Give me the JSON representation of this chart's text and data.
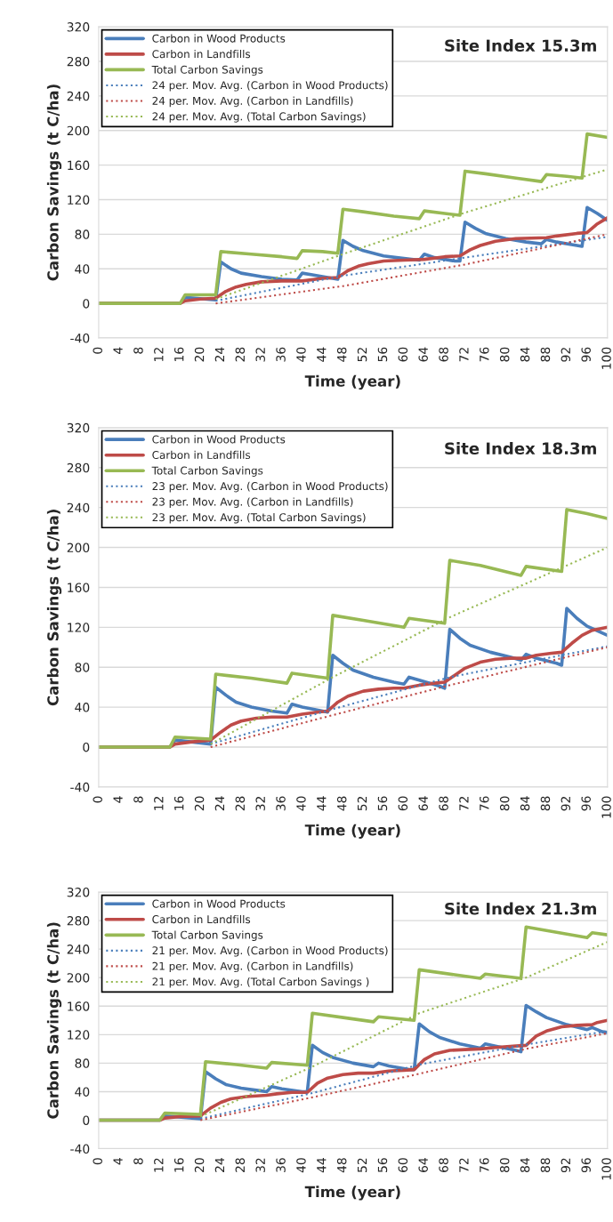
{
  "chart_data": [
    {
      "type": "line",
      "annotations": [
        "Site Index 15.3m"
      ],
      "xlabel": "Time (year)",
      "ylabel": "Carbon Savings (t C/ha)",
      "xlim": [
        0,
        100
      ],
      "xticks": [
        0,
        4,
        8,
        12,
        16,
        20,
        24,
        28,
        32,
        36,
        40,
        44,
        48,
        52,
        56,
        60,
        64,
        68,
        72,
        76,
        80,
        84,
        88,
        92,
        96,
        100
      ],
      "ylim": [
        -40,
        320
      ],
      "yticks": [
        -40,
        0,
        40,
        80,
        120,
        160,
        200,
        240,
        280,
        320
      ],
      "grid": "y",
      "legend": "top left",
      "series": [
        {
          "name": "Carbon in Wood Products",
          "color": "#4a7ebb",
          "line_style": "solid",
          "x": [
            0,
            16,
            17,
            23,
            24,
            26,
            28,
            32,
            36,
            39,
            40,
            42,
            46,
            47,
            48,
            50,
            52,
            56,
            60,
            63,
            64,
            66,
            70,
            71,
            72,
            74,
            76,
            80,
            84,
            87,
            88,
            90,
            94,
            95,
            96,
            98,
            100
          ],
          "values": [
            0,
            0,
            7,
            4,
            48,
            40,
            35,
            31,
            28,
            27,
            35,
            33,
            29,
            28,
            73,
            66,
            61,
            55,
            52,
            50,
            57,
            53,
            49,
            49,
            94,
            87,
            81,
            75,
            71,
            69,
            74,
            71,
            67,
            66,
            111,
            104,
            96
          ]
        },
        {
          "name": "Carbon in Landfills",
          "color": "#be4b48",
          "line_style": "solid",
          "x": [
            0,
            16,
            17,
            20,
            23,
            25,
            27,
            29,
            32,
            36,
            40,
            44,
            47,
            49,
            51,
            53,
            56,
            60,
            64,
            68,
            71,
            73,
            75,
            78,
            82,
            88,
            90,
            94,
            96,
            98,
            100
          ],
          "values": [
            0,
            0,
            3,
            5,
            6,
            14,
            19,
            22,
            25,
            26,
            26,
            29,
            30,
            38,
            43,
            46,
            49,
            50,
            51,
            54,
            55,
            62,
            67,
            72,
            75,
            76,
            78,
            81,
            82,
            92,
            99
          ]
        },
        {
          "name": "Total Carbon Savings",
          "color": "#98b954",
          "line_style": "solid",
          "x": [
            0,
            16,
            17,
            23,
            24,
            30,
            36,
            39,
            40,
            44,
            47,
            48,
            52,
            58,
            63,
            64,
            68,
            71,
            72,
            76,
            82,
            87,
            88,
            92,
            95,
            96,
            100
          ],
          "values": [
            0,
            0,
            10,
            10,
            60,
            57,
            54,
            52,
            61,
            60,
            58,
            109,
            106,
            101,
            98,
            107,
            104,
            102,
            153,
            150,
            145,
            141,
            149,
            147,
            145,
            196,
            192
          ]
        },
        {
          "name": "24 per. Mov. Avg. (Carbon in Wood Products)",
          "color": "#4a7ebb",
          "line_style": "dotted",
          "x": [
            23,
            48,
            72,
            100
          ],
          "values": [
            3,
            32,
            53,
            77
          ]
        },
        {
          "name": "24 per. Mov. Avg. (Carbon in Landfills)",
          "color": "#be4b48",
          "line_style": "dotted",
          "x": [
            23,
            48,
            72,
            100
          ],
          "values": [
            0,
            20,
            45,
            80
          ]
        },
        {
          "name": "24 per. Mov. Avg. (Total Carbon Savings)",
          "color": "#98b954",
          "line_style": "dotted",
          "x": [
            23,
            48,
            72,
            100
          ],
          "values": [
            5,
            57,
            105,
            155
          ]
        }
      ]
    },
    {
      "type": "line",
      "annotations": [
        "Site Index 18.3m"
      ],
      "xlabel": "Time (year)",
      "ylabel": "Carbon Savings (t C/ha)",
      "xlim": [
        0,
        100
      ],
      "xticks": [
        0,
        4,
        8,
        12,
        16,
        20,
        24,
        28,
        32,
        36,
        40,
        44,
        48,
        52,
        56,
        60,
        64,
        68,
        72,
        76,
        80,
        84,
        88,
        92,
        96,
        100
      ],
      "ylim": [
        -40,
        320
      ],
      "yticks": [
        -40,
        0,
        40,
        80,
        120,
        160,
        200,
        240,
        280,
        320
      ],
      "grid": "y",
      "legend": "top left",
      "series": [
        {
          "name": "Carbon in Wood Products",
          "color": "#4a7ebb",
          "line_style": "solid",
          "x": [
            0,
            14,
            15,
            22,
            23,
            25,
            27,
            30,
            34,
            37,
            38,
            40,
            44,
            45,
            46,
            48,
            50,
            54,
            58,
            60,
            61,
            63,
            67,
            68,
            69,
            71,
            73,
            77,
            81,
            83,
            84,
            86,
            90,
            91,
            92,
            94,
            96,
            100
          ],
          "values": [
            0,
            0,
            7,
            3,
            60,
            52,
            45,
            40,
            36,
            34,
            43,
            40,
            36,
            35,
            92,
            84,
            77,
            70,
            65,
            63,
            70,
            67,
            61,
            59,
            118,
            109,
            102,
            95,
            90,
            87,
            93,
            89,
            84,
            82,
            139,
            129,
            121,
            112
          ]
        },
        {
          "name": "Carbon in Landfills",
          "color": "#be4b48",
          "line_style": "solid",
          "x": [
            0,
            14,
            15,
            18,
            22,
            24,
            26,
            28,
            31,
            34,
            37,
            40,
            43,
            45,
            47,
            49,
            52,
            55,
            58,
            60,
            63,
            66,
            68,
            70,
            72,
            75,
            78,
            81,
            84,
            86,
            89,
            91,
            93,
            95,
            97,
            100
          ],
          "values": [
            0,
            0,
            3,
            5,
            7,
            15,
            22,
            26,
            29,
            30,
            30,
            33,
            35,
            36,
            45,
            51,
            56,
            58,
            59,
            59,
            62,
            64,
            65,
            72,
            79,
            85,
            88,
            89,
            89,
            92,
            94,
            95,
            104,
            112,
            117,
            120
          ]
        },
        {
          "name": "Total Carbon Savings",
          "color": "#98b954",
          "line_style": "solid",
          "x": [
            0,
            14,
            15,
            22,
            23,
            30,
            37,
            38,
            45,
            46,
            52,
            60,
            61,
            68,
            69,
            75,
            83,
            84,
            91,
            92,
            96,
            100
          ],
          "values": [
            0,
            0,
            10,
            8,
            73,
            69,
            64,
            74,
            69,
            132,
            127,
            120,
            129,
            124,
            187,
            182,
            172,
            181,
            176,
            238,
            234,
            229
          ]
        },
        {
          "name": "23 per. Mov. Avg. (Carbon in Wood Products)",
          "color": "#4a7ebb",
          "line_style": "dotted",
          "x": [
            22,
            46,
            69,
            100
          ],
          "values": [
            3,
            38,
            70,
            101
          ]
        },
        {
          "name": "23 per. Mov. Avg. (Carbon in Landfills)",
          "color": "#be4b48",
          "line_style": "dotted",
          "x": [
            22,
            46,
            69,
            100
          ],
          "values": [
            0,
            32,
            62,
            100
          ]
        },
        {
          "name": "23 per. Mov. Avg. (Total Carbon Savings)",
          "color": "#98b954",
          "line_style": "dotted",
          "x": [
            22,
            46,
            69,
            100
          ],
          "values": [
            3,
            70,
            130,
            200
          ]
        }
      ]
    },
    {
      "type": "line",
      "annotations": [
        "Site Index 21.3m"
      ],
      "xlabel": "Time (year)",
      "ylabel": "Carbon Savings (t C/ha)",
      "xlim": [
        0,
        100
      ],
      "xticks": [
        0,
        4,
        8,
        12,
        16,
        20,
        24,
        28,
        32,
        36,
        40,
        44,
        48,
        52,
        56,
        60,
        64,
        68,
        72,
        76,
        80,
        84,
        88,
        92,
        96,
        100
      ],
      "ylim": [
        -40,
        320
      ],
      "yticks": [
        -40,
        0,
        40,
        80,
        120,
        160,
        200,
        240,
        280,
        320
      ],
      "grid": "y",
      "legend": "top left",
      "series": [
        {
          "name": "Carbon in Wood Products",
          "color": "#4a7ebb",
          "line_style": "solid",
          "x": [
            0,
            12,
            13,
            20,
            21,
            23,
            25,
            28,
            32,
            33,
            34,
            36,
            40,
            41,
            42,
            44,
            46,
            50,
            54,
            55,
            57,
            61,
            62,
            63,
            65,
            67,
            71,
            75,
            76,
            78,
            82,
            83,
            84,
            86,
            88,
            92,
            96,
            97,
            99,
            100
          ],
          "values": [
            0,
            0,
            6,
            2,
            68,
            58,
            50,
            45,
            41,
            40,
            47,
            44,
            40,
            40,
            105,
            95,
            88,
            80,
            75,
            80,
            76,
            71,
            71,
            135,
            124,
            116,
            107,
            101,
            107,
            104,
            98,
            96,
            161,
            152,
            144,
            134,
            127,
            130,
            124,
            123
          ]
        },
        {
          "name": "Carbon in Landfills",
          "color": "#be4b48",
          "line_style": "solid",
          "x": [
            0,
            12,
            13,
            16,
            20,
            22,
            24,
            26,
            29,
            33,
            35,
            38,
            41,
            43,
            45,
            48,
            51,
            54,
            57,
            60,
            62,
            64,
            66,
            69,
            72,
            75,
            78,
            82,
            84,
            86,
            88,
            91,
            94,
            97,
            98,
            100
          ],
          "values": [
            0,
            0,
            3,
            5,
            6,
            17,
            25,
            30,
            33,
            35,
            37,
            39,
            39,
            52,
            59,
            64,
            66,
            66,
            69,
            70,
            71,
            85,
            93,
            98,
            99,
            100,
            102,
            104,
            105,
            118,
            125,
            131,
            133,
            134,
            137,
            140
          ]
        },
        {
          "name": "Total Carbon Savings",
          "color": "#98b954",
          "line_style": "solid",
          "x": [
            0,
            12,
            13,
            20,
            21,
            27,
            33,
            34,
            41,
            42,
            49,
            54,
            55,
            62,
            63,
            70,
            75,
            76,
            83,
            84,
            96,
            97,
            100
          ],
          "values": [
            0,
            0,
            10,
            8,
            82,
            78,
            73,
            81,
            77,
            150,
            143,
            138,
            145,
            140,
            211,
            204,
            199,
            205,
            199,
            271,
            256,
            263,
            260
          ]
        },
        {
          "name": "21 per. Mov. Avg. (Carbon in Wood Products)",
          "color": "#4a7ebb",
          "line_style": "dotted",
          "x": [
            20,
            42,
            63,
            84,
            100
          ],
          "values": [
            2,
            38,
            78,
            106,
            125
          ]
        },
        {
          "name": "21 per. Mov. Avg. (Carbon in Landfills)",
          "color": "#be4b48",
          "line_style": "dotted",
          "x": [
            20,
            42,
            63,
            84,
            100
          ],
          "values": [
            0,
            32,
            65,
            100,
            122
          ]
        },
        {
          "name": "21 per. Mov. Avg. (Total Carbon Savings )",
          "color": "#98b954",
          "line_style": "dotted",
          "x": [
            20,
            42,
            63,
            84,
            100
          ],
          "values": [
            5,
            75,
            150,
            200,
            250
          ]
        }
      ]
    }
  ]
}
